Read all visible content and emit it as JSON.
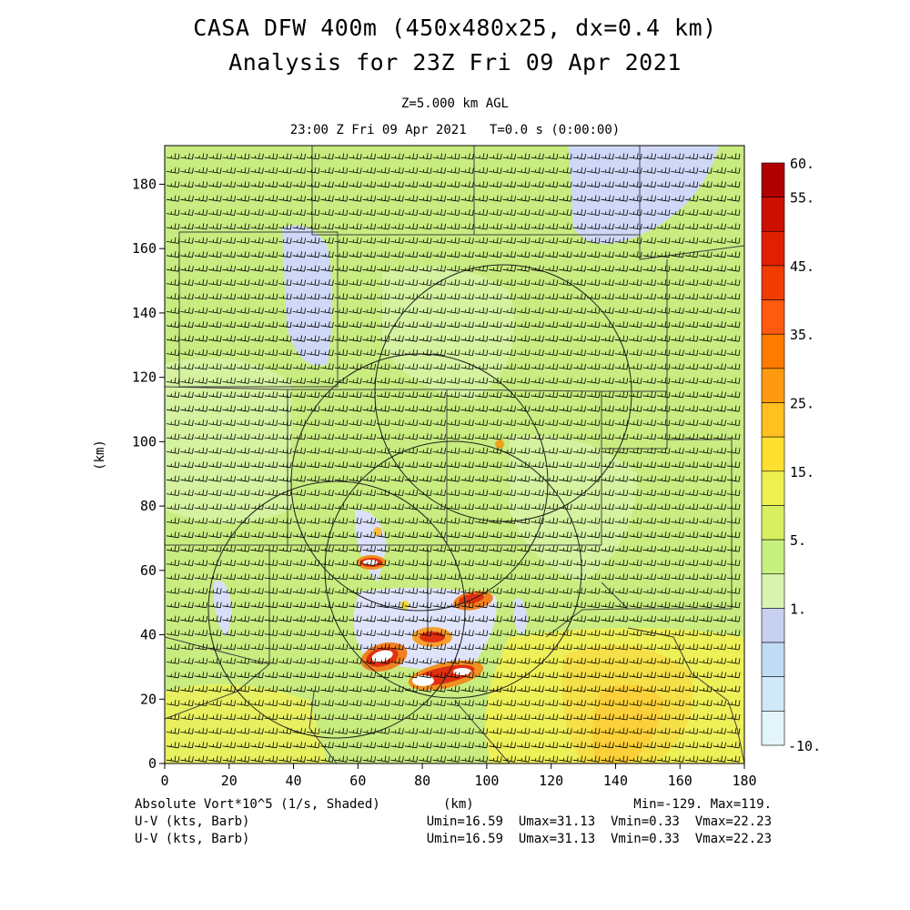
{
  "header": {
    "title_line1": "CASA DFW 400m (450x480x25, dx=0.4 km)",
    "title_line2": "Analysis for 23Z Fri 09 Apr 2021",
    "level": "Z=5.000 km AGL",
    "time": "23:00 Z Fri 09 Apr 2021   T=0.0 s (0:00:00)"
  },
  "axes": {
    "xlabel": "(km)",
    "ylabel": "(km)",
    "x_ticks": [
      "0",
      "20",
      "40",
      "60",
      "80",
      "100",
      "120",
      "140",
      "160",
      "180"
    ],
    "y_ticks": [
      "0",
      "20",
      "40",
      "60",
      "80",
      "100",
      "120",
      "140",
      "160",
      "180"
    ],
    "xlim": [
      0,
      180
    ],
    "ylim": [
      0,
      192
    ]
  },
  "colorbar": {
    "labels": [
      "60.",
      "55.",
      "45.",
      "35.",
      "25.",
      "15.",
      "5.",
      "1.",
      "-10."
    ],
    "colors": [
      "#b00000",
      "#cc1000",
      "#e02000",
      "#f03c00",
      "#ff5a10",
      "#ff7a00",
      "#ff9a10",
      "#ffc020",
      "#ffe030",
      "#eef050",
      "#d8f060",
      "#c8f080",
      "#d8f4b0",
      "#c8d0f0",
      "#c0dcf4",
      "#d0e8f8",
      "#e4f4fc"
    ]
  },
  "footer": {
    "field_label": "Absolute Vort*10^5 (1/s, Shaded)",
    "xunit": "(km)",
    "minmax": "Min=-129. Max=119.",
    "barb1_label": "U-V (kts, Barb)",
    "barb1_stats": "Umin=16.59  Umax=31.13  Vmin=0.33  Vmax=22.23",
    "barb2_label": "U-V (kts, Barb)",
    "barb2_stats": "Umin=16.59  Umax=31.13  Vmin=0.33  Vmax=22.23"
  },
  "map_style": {
    "background": "#c8ec80",
    "light_green": "#d8f4a8",
    "yellow": "#f0f050",
    "orange": "#ffc830",
    "lavender": "#d0d8f8",
    "red": "#e03010",
    "barb_color": "#000000"
  }
}
